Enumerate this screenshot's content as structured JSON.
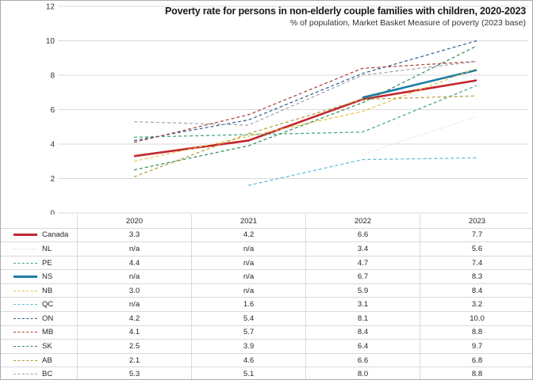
{
  "header": {
    "title": "Poverty rate for persons in non-elderly couple families with children, 2020-2023",
    "subtitle": "% of population, Market Basket Measure of poverty (2023 base)"
  },
  "chart_data": {
    "type": "line",
    "x": [
      "2020",
      "2021",
      "2022",
      "2023"
    ],
    "ylim": [
      0,
      12
    ],
    "yticks": [
      0,
      2,
      4,
      6,
      8,
      10,
      12
    ],
    "grid": true,
    "na_label": "n/a",
    "legend_position": "left-column-of-table",
    "series": [
      {
        "name": "Canada",
        "color": "#c4262e",
        "style": "solid",
        "thick": true,
        "values": [
          3.3,
          4.2,
          6.6,
          7.7
        ]
      },
      {
        "name": "NL",
        "color": "#e8d8d6",
        "style": "dotted",
        "thick": false,
        "values": [
          null,
          null,
          3.4,
          5.6
        ]
      },
      {
        "name": "PE",
        "color": "#3fa37c",
        "style": "dashed",
        "thick": false,
        "values": [
          4.4,
          null,
          4.7,
          7.4
        ]
      },
      {
        "name": "NS",
        "color": "#1f7ca6",
        "style": "solid",
        "thick": true,
        "values": [
          null,
          null,
          6.7,
          8.3
        ]
      },
      {
        "name": "NB",
        "color": "#e7c13d",
        "style": "dashed",
        "thick": false,
        "values": [
          3.0,
          null,
          5.9,
          8.4
        ]
      },
      {
        "name": "QC",
        "color": "#58b8d8",
        "style": "dashed",
        "thick": false,
        "values": [
          null,
          1.6,
          3.1,
          3.2
        ]
      },
      {
        "name": "ON",
        "color": "#2e5e8c",
        "style": "dashed",
        "thick": false,
        "values": [
          4.2,
          5.4,
          8.1,
          10.0
        ]
      },
      {
        "name": "MB",
        "color": "#a6413c",
        "style": "dashed",
        "thick": false,
        "values": [
          4.1,
          5.7,
          8.4,
          8.8
        ]
      },
      {
        "name": "SK",
        "color": "#2d8a57",
        "style": "dashed",
        "thick": false,
        "values": [
          2.5,
          3.9,
          6.4,
          9.7
        ]
      },
      {
        "name": "AB",
        "color": "#b29b3b",
        "style": "dashed",
        "thick": false,
        "values": [
          2.1,
          4.6,
          6.6,
          6.8
        ]
      },
      {
        "name": "BC",
        "color": "#a3a3a3",
        "style": "dashed",
        "thick": false,
        "values": [
          5.3,
          5.1,
          8.0,
          8.8
        ]
      }
    ]
  }
}
